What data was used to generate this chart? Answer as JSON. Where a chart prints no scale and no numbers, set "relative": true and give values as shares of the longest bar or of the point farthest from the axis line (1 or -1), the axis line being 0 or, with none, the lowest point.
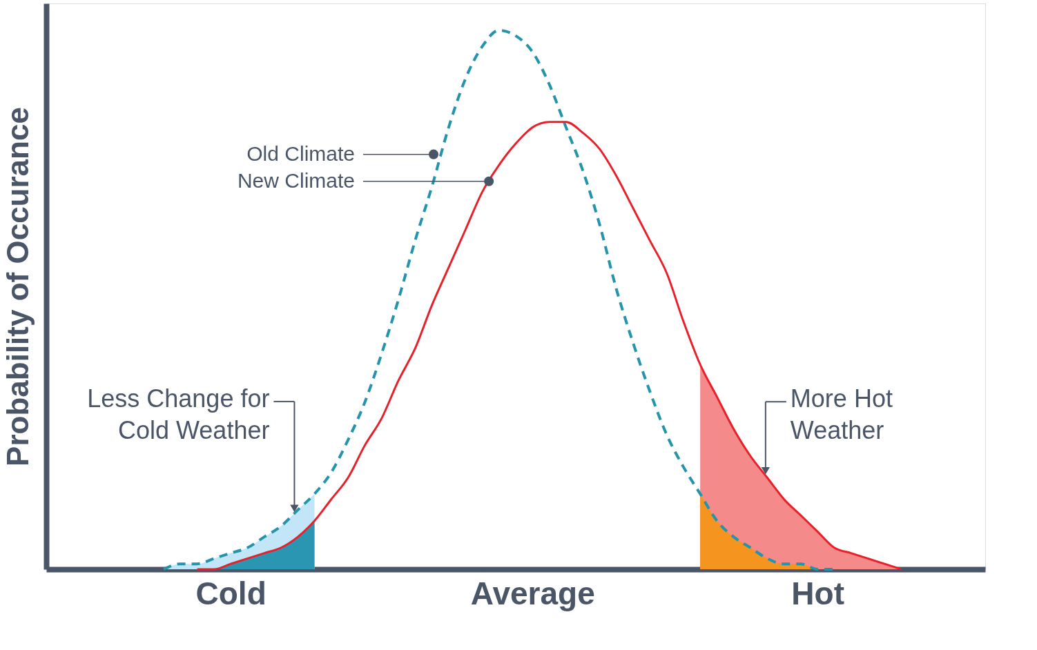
{
  "chart_data": {
    "type": "line",
    "relative": true,
    "ylabel": "Probability of Occurance",
    "categories": [
      null,
      null,
      null,
      null,
      null,
      null,
      null,
      null,
      null,
      null,
      null,
      "Cold",
      null,
      null,
      null,
      null,
      null,
      null,
      null,
      null,
      null,
      null,
      null,
      null,
      null,
      null,
      null,
      null,
      null,
      "Average",
      null,
      null,
      null,
      null,
      null,
      null,
      null,
      null,
      null,
      null,
      null,
      null,
      null,
      null,
      null,
      null,
      "Hot",
      null,
      null,
      null,
      null,
      null,
      null,
      null,
      null,
      null,
      null
    ],
    "grid": false,
    "marker": "none",
    "series": [
      {
        "type": "area",
        "color": "#c2e6f7",
        "values": [
          null,
          null,
          null,
          null,
          null,
          null,
          null,
          0.0,
          0.01,
          0.01,
          0.02,
          0.03,
          0.04,
          0.06,
          0.08,
          0.11,
          0.14,
          null,
          null,
          null,
          null,
          null,
          null,
          null,
          null,
          null,
          null,
          null,
          null,
          null,
          null,
          null,
          null,
          null,
          null,
          null,
          null,
          null,
          null,
          null,
          null,
          null,
          null,
          null,
          null,
          null,
          null,
          null,
          null,
          null,
          null,
          null,
          null,
          null,
          null,
          null,
          null
        ]
      },
      {
        "type": "area",
        "color": "#2a96b2",
        "values": [
          null,
          null,
          null,
          null,
          null,
          null,
          null,
          null,
          null,
          0.0,
          0.0,
          0.01,
          0.02,
          0.03,
          0.04,
          0.06,
          0.09,
          null,
          null,
          null,
          null,
          null,
          null,
          null,
          null,
          null,
          null,
          null,
          null,
          null,
          null,
          null,
          null,
          null,
          null,
          null,
          null,
          null,
          null,
          null,
          null,
          null,
          null,
          null,
          null,
          null,
          null,
          null,
          null,
          null,
          null,
          null,
          null,
          null,
          null,
          null,
          null
        ]
      },
      {
        "type": "area",
        "color": "#f48a8a",
        "values": [
          null,
          null,
          null,
          null,
          null,
          null,
          null,
          null,
          null,
          null,
          null,
          null,
          null,
          null,
          null,
          null,
          null,
          null,
          null,
          null,
          null,
          null,
          null,
          null,
          null,
          null,
          null,
          null,
          null,
          null,
          null,
          null,
          null,
          null,
          null,
          null,
          null,
          null,
          null,
          0.38,
          0.32,
          0.26,
          0.21,
          0.17,
          0.13,
          0.1,
          0.07,
          0.04,
          0.03,
          0.02,
          0.01,
          0.0,
          null,
          null,
          null,
          null,
          null
        ]
      },
      {
        "type": "area",
        "color": "#f5941e",
        "values": [
          null,
          null,
          null,
          null,
          null,
          null,
          null,
          null,
          null,
          null,
          null,
          null,
          null,
          null,
          null,
          null,
          null,
          null,
          null,
          null,
          null,
          null,
          null,
          null,
          null,
          null,
          null,
          null,
          null,
          null,
          null,
          null,
          null,
          null,
          null,
          null,
          null,
          null,
          null,
          0.14,
          0.09,
          0.06,
          0.04,
          0.02,
          0.01,
          0.01,
          0.0,
          0.0,
          null,
          null,
          null,
          null,
          null,
          null,
          null,
          null,
          null
        ]
      },
      {
        "color": "#2394ac",
        "line_style": "dashed",
        "values": [
          null,
          null,
          null,
          null,
          null,
          null,
          null,
          0.0,
          0.01,
          0.01,
          0.02,
          0.03,
          0.04,
          0.06,
          0.08,
          0.11,
          0.14,
          0.18,
          0.24,
          0.31,
          0.4,
          0.5,
          0.61,
          0.71,
          0.82,
          0.91,
          0.97,
          1.0,
          0.99,
          0.96,
          0.9,
          0.82,
          0.74,
          0.64,
          0.52,
          0.42,
          0.33,
          0.25,
          0.19,
          0.14,
          0.09,
          0.06,
          0.04,
          0.02,
          0.01,
          0.01,
          0.0,
          0.0,
          null,
          null,
          null,
          null,
          null,
          null,
          null,
          null,
          null
        ]
      },
      {
        "color": "#e8202a",
        "line_style": "solid",
        "values": [
          null,
          null,
          null,
          null,
          null,
          null,
          null,
          null,
          null,
          0.0,
          0.0,
          0.01,
          0.02,
          0.03,
          0.04,
          0.06,
          0.09,
          0.13,
          0.17,
          0.23,
          0.28,
          0.35,
          0.41,
          0.49,
          0.56,
          0.63,
          0.7,
          0.75,
          0.79,
          0.82,
          0.83,
          0.83,
          0.81,
          0.78,
          0.73,
          0.67,
          0.61,
          0.55,
          0.46,
          0.38,
          0.32,
          0.26,
          0.21,
          0.17,
          0.13,
          0.1,
          0.07,
          0.04,
          0.03,
          0.02,
          0.01,
          0.0,
          null,
          null,
          null,
          null,
          null
        ]
      }
    ],
    "annotations": [
      "Old Climate",
      "New Climate",
      "Less Change for Cold Weather",
      "More Hot Weather"
    ]
  }
}
